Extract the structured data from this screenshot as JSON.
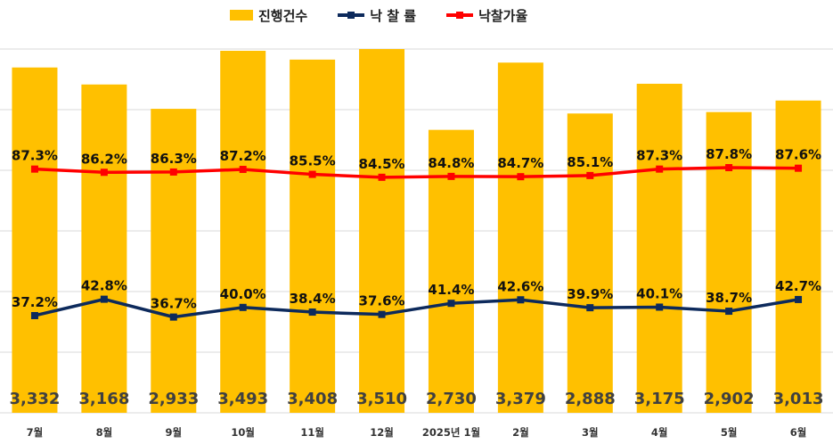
{
  "legend": {
    "count_label": "진행건수",
    "rate_label": "낙 찰 률",
    "price_label": "낙찰가율"
  },
  "colors": {
    "bar": "#FFC000",
    "rate_line": "#0D2A5C",
    "price_line": "#FF0000",
    "grid": "#D9D9D9"
  },
  "chart_data": {
    "type": "bar",
    "categories": [
      "7월",
      "8월",
      "9월",
      "10월",
      "11월",
      "12월",
      "2025년 1월",
      "2월",
      "3월",
      "4월",
      "5월",
      "6월"
    ],
    "series": [
      {
        "name": "진행건수",
        "type": "bar",
        "values": [
          3332,
          3168,
          2933,
          3493,
          3408,
          3510,
          2730,
          3379,
          2888,
          3175,
          2902,
          3013
        ],
        "labels": [
          "3,332",
          "3,168",
          "2,933",
          "3,493",
          "3,408",
          "3,510",
          "2,730",
          "3,379",
          "2,888",
          "3,175",
          "2,902",
          "3,013"
        ]
      },
      {
        "name": "낙 찰 률",
        "type": "line",
        "values": [
          37.2,
          42.8,
          36.7,
          40.0,
          38.4,
          37.6,
          41.4,
          42.6,
          39.9,
          40.1,
          38.7,
          42.7
        ],
        "labels": [
          "37.2%",
          "42.8%",
          "36.7%",
          "40.0%",
          "38.4%",
          "37.6%",
          "41.4%",
          "42.6%",
          "39.9%",
          "40.1%",
          "38.7%",
          "42.7%"
        ]
      },
      {
        "name": "낙찰가율",
        "type": "line",
        "values": [
          87.3,
          86.2,
          86.3,
          87.2,
          85.5,
          84.5,
          84.8,
          84.7,
          85.1,
          87.3,
          87.8,
          87.6
        ],
        "labels": [
          "87.3%",
          "86.2%",
          "86.3%",
          "87.2%",
          "85.5%",
          "84.5%",
          "84.8%",
          "84.7%",
          "85.1%",
          "87.3%",
          "87.8%",
          "87.6%"
        ]
      }
    ],
    "grid": true,
    "legend_position": "top"
  }
}
